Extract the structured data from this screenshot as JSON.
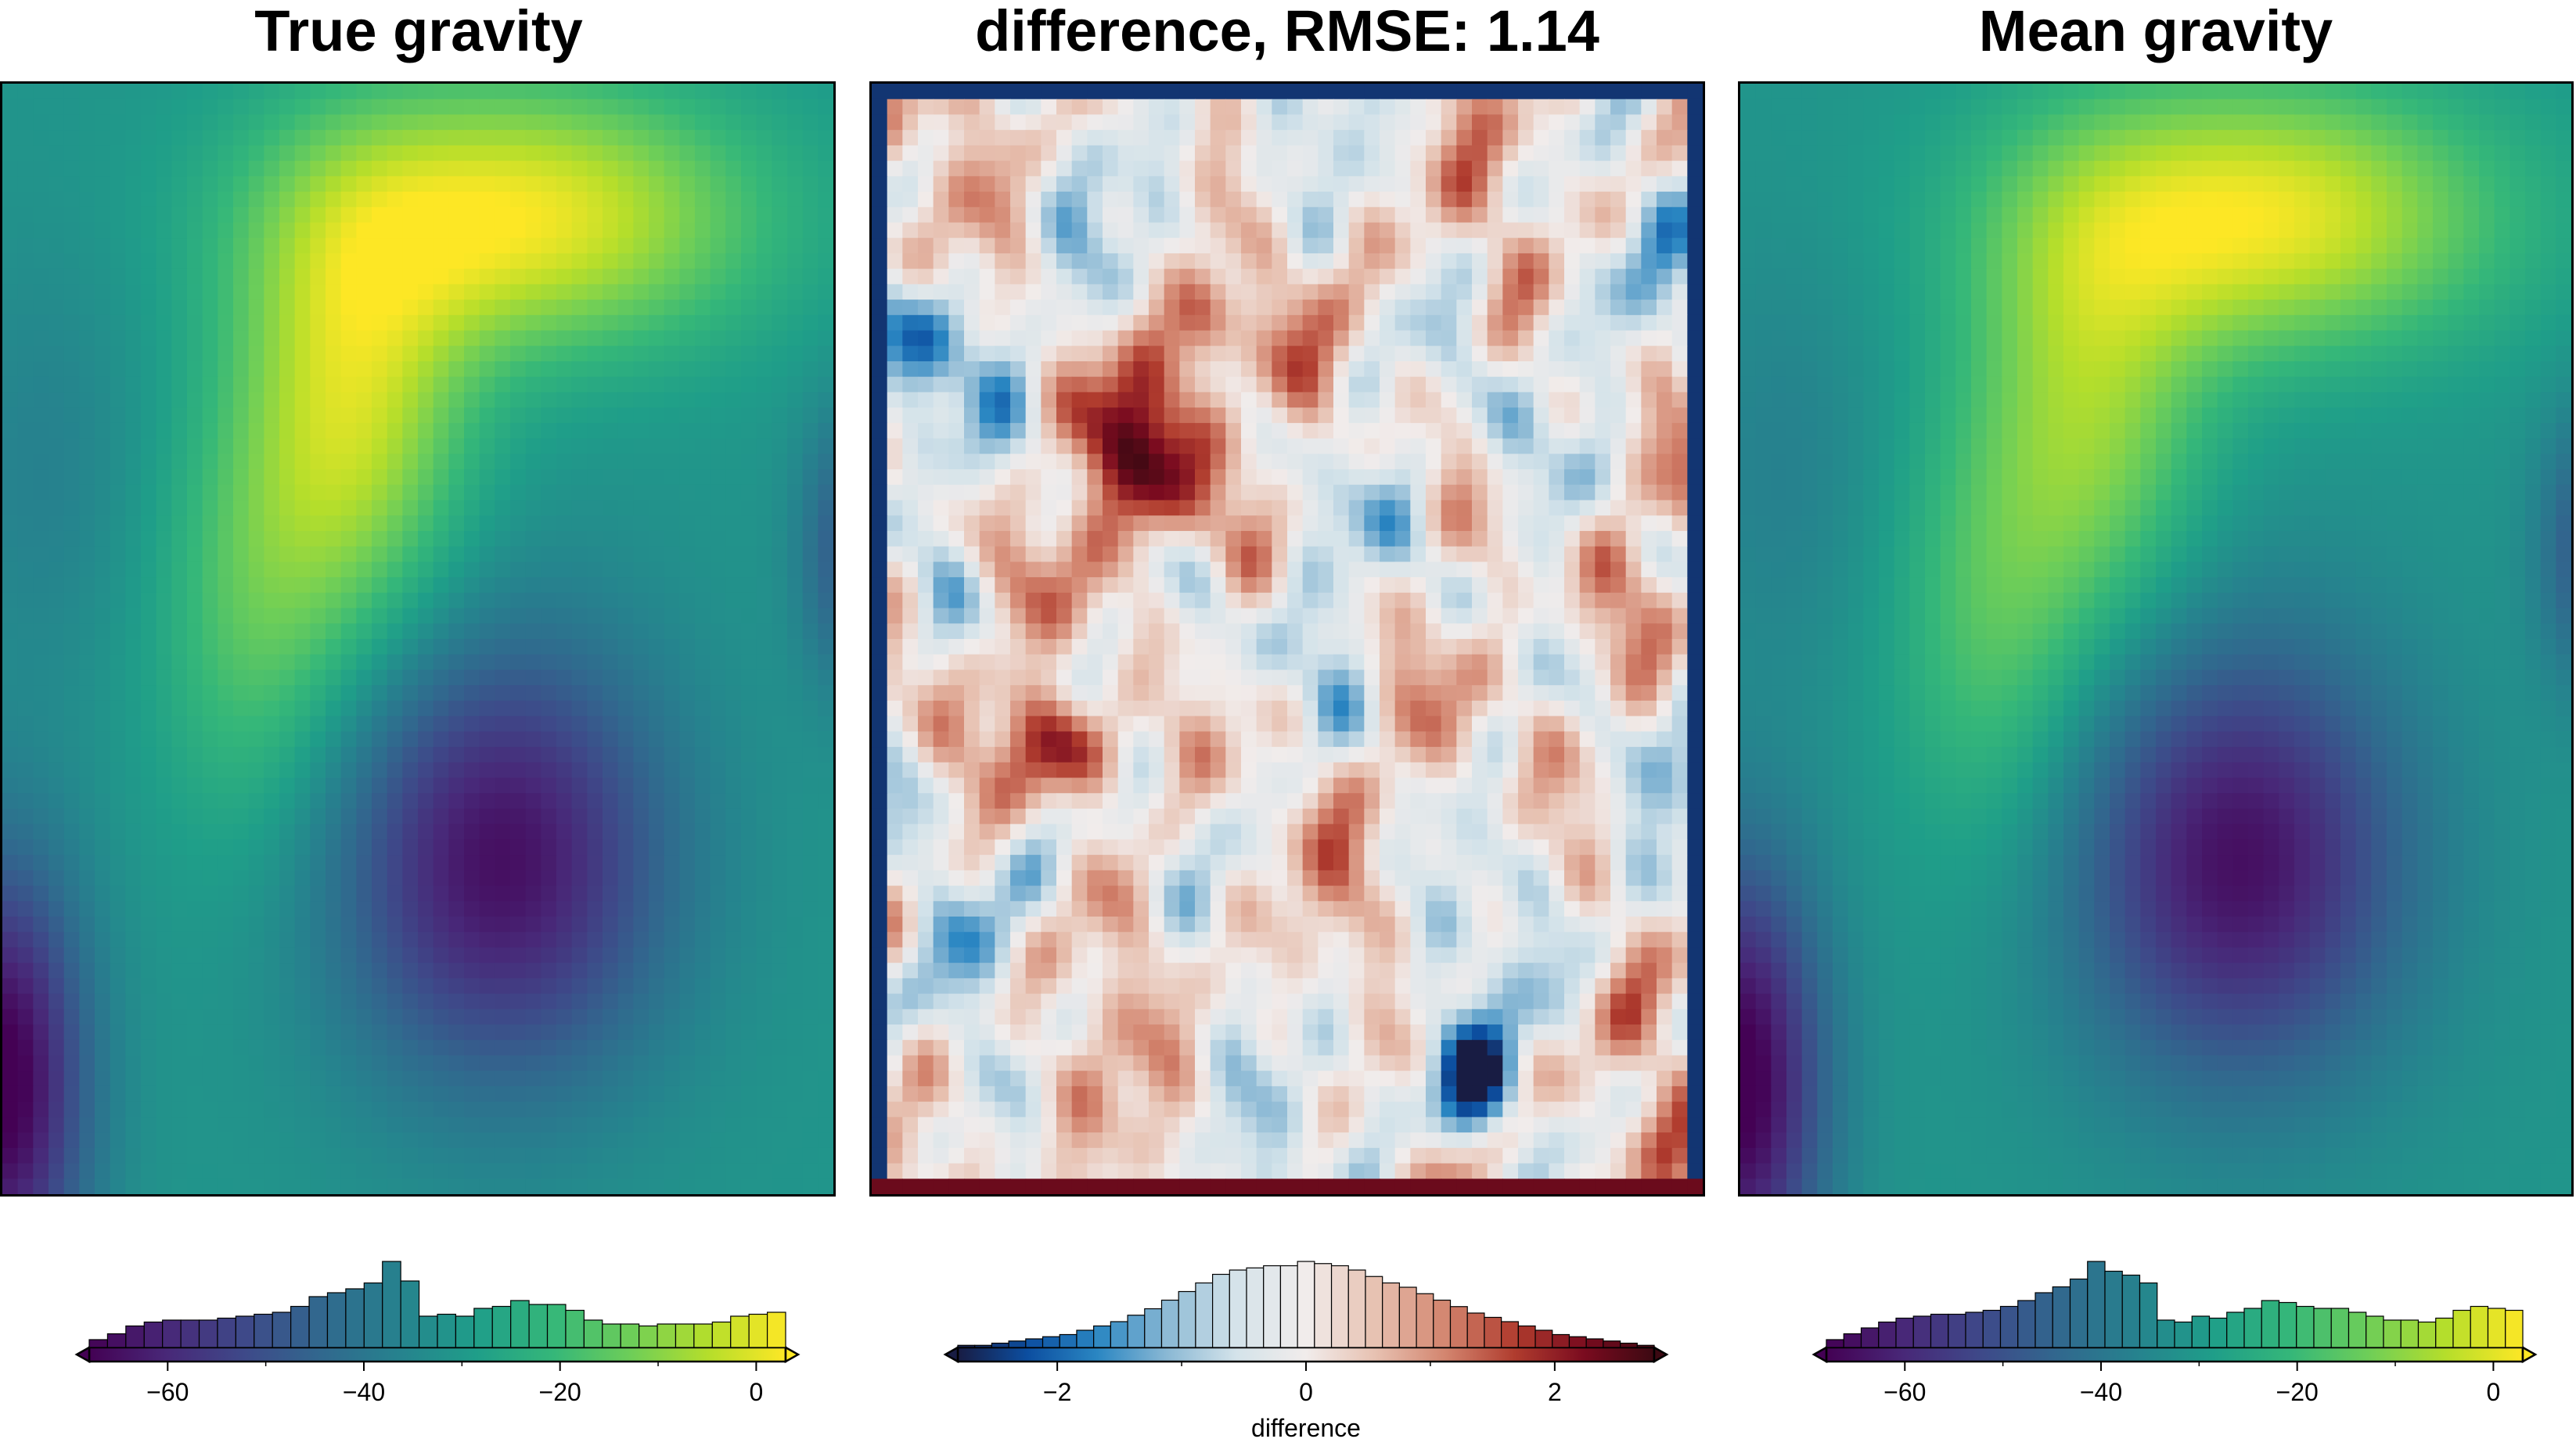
{
  "panels": [
    {
      "id": "true",
      "title": "True gravity",
      "colormap": "viridis",
      "colorbar": {
        "range": [
          -68,
          3
        ],
        "ticks": [
          -60,
          -40,
          -20,
          0
        ],
        "tick_labels": [
          "−60",
          "−40",
          "−20",
          "0"
        ],
        "label": ""
      }
    },
    {
      "id": "diff",
      "title": "difference, RMSE: 1.14",
      "colormap": "balance",
      "colorbar": {
        "range": [
          -2.8,
          2.8
        ],
        "ticks": [
          -2,
          0,
          2
        ],
        "tick_labels": [
          "−2",
          "0",
          "2"
        ],
        "label": "difference"
      }
    },
    {
      "id": "mean",
      "title": "Mean gravity",
      "colormap": "viridis",
      "colorbar": {
        "range": [
          -68,
          3
        ],
        "ticks": [
          -60,
          -40,
          -20,
          0
        ],
        "tick_labels": [
          "−60",
          "−40",
          "−20",
          "0"
        ],
        "label": ""
      }
    }
  ],
  "chart_data": [
    {
      "type": "heatmap",
      "title": "True gravity",
      "colorbar_range": [
        -68,
        3
      ],
      "histogram": [
        4,
        7,
        11,
        13,
        14,
        14,
        14,
        15,
        16,
        17,
        18,
        21,
        26,
        28,
        30,
        33,
        44,
        34,
        16,
        17,
        16,
        20,
        21,
        24,
        22,
        22,
        19,
        14,
        12,
        12,
        11,
        12,
        12,
        12,
        13,
        16,
        17,
        18
      ]
    },
    {
      "type": "heatmap",
      "title": "difference, RMSE: 1.14",
      "colorbar_range": [
        -2.8,
        2.8
      ],
      "histogram": [
        1,
        1,
        2,
        3,
        4,
        5,
        6,
        8,
        10,
        12,
        15,
        18,
        22,
        26,
        30,
        34,
        36,
        37,
        38,
        38,
        40,
        39,
        38,
        36,
        33,
        30,
        28,
        25,
        22,
        19,
        16,
        14,
        12,
        10,
        8,
        6,
        5,
        4,
        3,
        2,
        1
      ]
    },
    {
      "type": "heatmap",
      "title": "Mean gravity",
      "colorbar_range": [
        -68,
        3
      ],
      "histogram": [
        4,
        7,
        10,
        13,
        15,
        16,
        17,
        17,
        18,
        19,
        21,
        24,
        28,
        31,
        35,
        44,
        39,
        37,
        33,
        14,
        13,
        16,
        15,
        18,
        20,
        24,
        23,
        21,
        20,
        20,
        18,
        16,
        14,
        14,
        13,
        15,
        19,
        21,
        20,
        19
      ]
    }
  ]
}
